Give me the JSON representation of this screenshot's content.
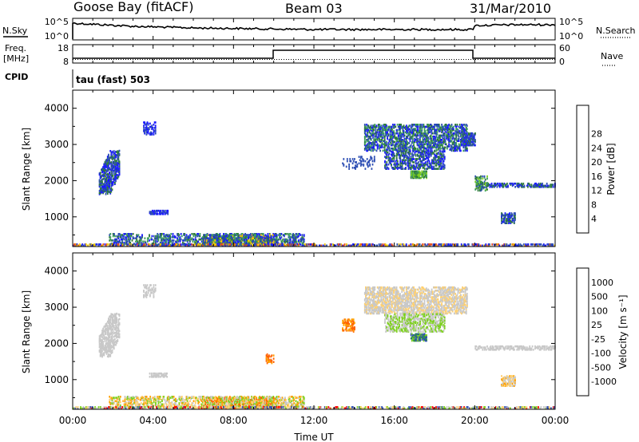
{
  "header": {
    "station": "Goose Bay (fitACF)",
    "beam": "Beam 03",
    "date": "31/Mar/2010"
  },
  "panels": {
    "nsky": {
      "label": "N.Sky",
      "ticks": [
        "10^5",
        "10^0"
      ],
      "right_label": "N.Search",
      "right_ticks": [
        "10^5",
        "10^0"
      ]
    },
    "freq": {
      "label_line1": "Freq.",
      "label_line2": "[MHz]",
      "ticks": [
        "18",
        "8"
      ],
      "right_label": "Nave",
      "right_ticks": [
        "60",
        "0"
      ]
    },
    "cpid": {
      "label": "CPID",
      "value": "tau (fast) 503"
    }
  },
  "colors": {
    "power": [
      "#1a1aff",
      "#2e4fb4",
      "#2e7a3c",
      "#3fa060",
      "#7ed020",
      "#f0c800",
      "#f08c00",
      "#e8501e",
      "#ff0000"
    ],
    "velocity": [
      "#ff0000",
      "#ff6000",
      "#ffa000",
      "#ffd070",
      "#c8c8c8",
      "#7ed020",
      "#2e9640",
      "#2e4fb4",
      "#1a1aff"
    ]
  },
  "chart_data": [
    {
      "type": "heatmap",
      "name": "power",
      "xlabel": "",
      "ylabel": "Slant Range [km]",
      "xlim": [
        0,
        24
      ],
      "ylim": [
        180,
        4500
      ],
      "yticks": [
        1000,
        2000,
        3000,
        4000
      ],
      "colorbar": {
        "label": "Power [dB]",
        "ticks": [
          "4",
          "8",
          "12",
          "16",
          "20",
          "24",
          "28"
        ]
      },
      "regions": [
        {
          "t": [
            1.3,
            2.3
          ],
          "r": [
            1600,
            2800
          ],
          "slope": 1150,
          "density": 0.55,
          "c": [
            0,
            1,
            2
          ]
        },
        {
          "t": [
            3.5,
            4.1
          ],
          "r": [
            3250,
            3600
          ],
          "density": 0.35,
          "c": [
            0,
            1
          ]
        },
        {
          "t": [
            3.8,
            4.7
          ],
          "r": [
            1050,
            1150
          ],
          "density": 0.6,
          "c": [
            0,
            1
          ]
        },
        {
          "t": [
            1.8,
            11.5
          ],
          "r": [
            200,
            520
          ],
          "density": 0.35,
          "c": [
            0,
            1,
            2,
            3
          ]
        },
        {
          "t": [
            6.5,
            10.0
          ],
          "r": [
            200,
            480
          ],
          "density": 0.6,
          "c": [
            0,
            1,
            2,
            3,
            5
          ]
        },
        {
          "t": [
            13.4,
            15.0
          ],
          "r": [
            2300,
            2650
          ],
          "density": 0.15,
          "c": [
            1
          ]
        },
        {
          "t": [
            14.5,
            19.6
          ],
          "r": [
            2800,
            3550
          ],
          "density": 0.45,
          "c": [
            0,
            1,
            2,
            3
          ]
        },
        {
          "t": [
            15.5,
            18.5
          ],
          "r": [
            2300,
            2800
          ],
          "density": 0.4,
          "c": [
            0,
            1,
            2
          ]
        },
        {
          "t": [
            16.8,
            17.6
          ],
          "r": [
            2050,
            2250
          ],
          "density": 0.7,
          "c": [
            2,
            3,
            4
          ]
        },
        {
          "t": [
            19.4,
            20.0
          ],
          "r": [
            2950,
            3300
          ],
          "density": 0.55,
          "c": [
            0,
            1,
            2
          ]
        },
        {
          "t": [
            20.0,
            24.0
          ],
          "r": [
            1800,
            1920
          ],
          "density": 0.45,
          "c": [
            0,
            1,
            2
          ]
        },
        {
          "t": [
            20.0,
            20.6
          ],
          "r": [
            1700,
            2100
          ],
          "density": 0.4,
          "c": [
            1,
            2,
            3,
            4
          ]
        },
        {
          "t": [
            21.3,
            22.0
          ],
          "r": [
            800,
            1100
          ],
          "density": 0.5,
          "c": [
            0,
            1,
            2
          ]
        },
        {
          "t": [
            0.0,
            24.0
          ],
          "r": [
            180,
            230
          ],
          "density": 0.5,
          "c": [
            0,
            1,
            5,
            7
          ]
        }
      ]
    },
    {
      "type": "heatmap",
      "name": "velocity",
      "xlabel": "Time UT",
      "ylabel": "Slant Range [km]",
      "xlim": [
        0,
        24
      ],
      "ylim": [
        180,
        4500
      ],
      "xticks": [
        "00:00",
        "04:00",
        "08:00",
        "12:00",
        "16:00",
        "20:00",
        "00:00"
      ],
      "yticks": [
        1000,
        2000,
        3000,
        4000
      ],
      "colorbar": {
        "label": "Velocity [m s⁻¹]",
        "ticks": [
          "1000",
          "500",
          "100",
          "25",
          "-25",
          "-100",
          "-500",
          "-1000"
        ]
      },
      "regions": [
        {
          "t": [
            1.3,
            2.3
          ],
          "r": [
            1600,
            2800
          ],
          "slope": 1150,
          "density": 0.5,
          "c": [
            4
          ]
        },
        {
          "t": [
            3.5,
            4.1
          ],
          "r": [
            3250,
            3600
          ],
          "density": 0.3,
          "c": [
            4
          ]
        },
        {
          "t": [
            3.8,
            4.7
          ],
          "r": [
            1050,
            1150
          ],
          "density": 0.5,
          "c": [
            4
          ]
        },
        {
          "t": [
            1.8,
            11.5
          ],
          "r": [
            200,
            520
          ],
          "density": 0.35,
          "c": [
            3,
            4,
            5,
            2
          ]
        },
        {
          "t": [
            6.5,
            10.0
          ],
          "r": [
            200,
            480
          ],
          "density": 0.55,
          "c": [
            3,
            4,
            5,
            2,
            1
          ]
        },
        {
          "t": [
            9.6,
            10.0
          ],
          "r": [
            1400,
            1700
          ],
          "density": 0.3,
          "c": [
            1,
            2
          ]
        },
        {
          "t": [
            13.4,
            14.0
          ],
          "r": [
            2300,
            2650
          ],
          "density": 0.4,
          "c": [
            1,
            2
          ]
        },
        {
          "t": [
            14.5,
            19.6
          ],
          "r": [
            2800,
            3550
          ],
          "density": 0.45,
          "c": [
            4,
            4,
            3
          ]
        },
        {
          "t": [
            15.5,
            18.5
          ],
          "r": [
            2300,
            2800
          ],
          "density": 0.4,
          "c": [
            4,
            5
          ]
        },
        {
          "t": [
            16.8,
            17.6
          ],
          "r": [
            2050,
            2250
          ],
          "density": 0.7,
          "c": [
            6,
            7,
            5
          ]
        },
        {
          "t": [
            20.0,
            24.0
          ],
          "r": [
            1800,
            1920
          ],
          "density": 0.45,
          "c": [
            4
          ]
        },
        {
          "t": [
            21.3,
            22.0
          ],
          "r": [
            800,
            1100
          ],
          "density": 0.5,
          "c": [
            3,
            4,
            2
          ]
        },
        {
          "t": [
            0.0,
            24.0
          ],
          "r": [
            180,
            230
          ],
          "density": 0.5,
          "c": [
            0,
            3,
            4,
            5,
            7
          ]
        }
      ]
    }
  ]
}
